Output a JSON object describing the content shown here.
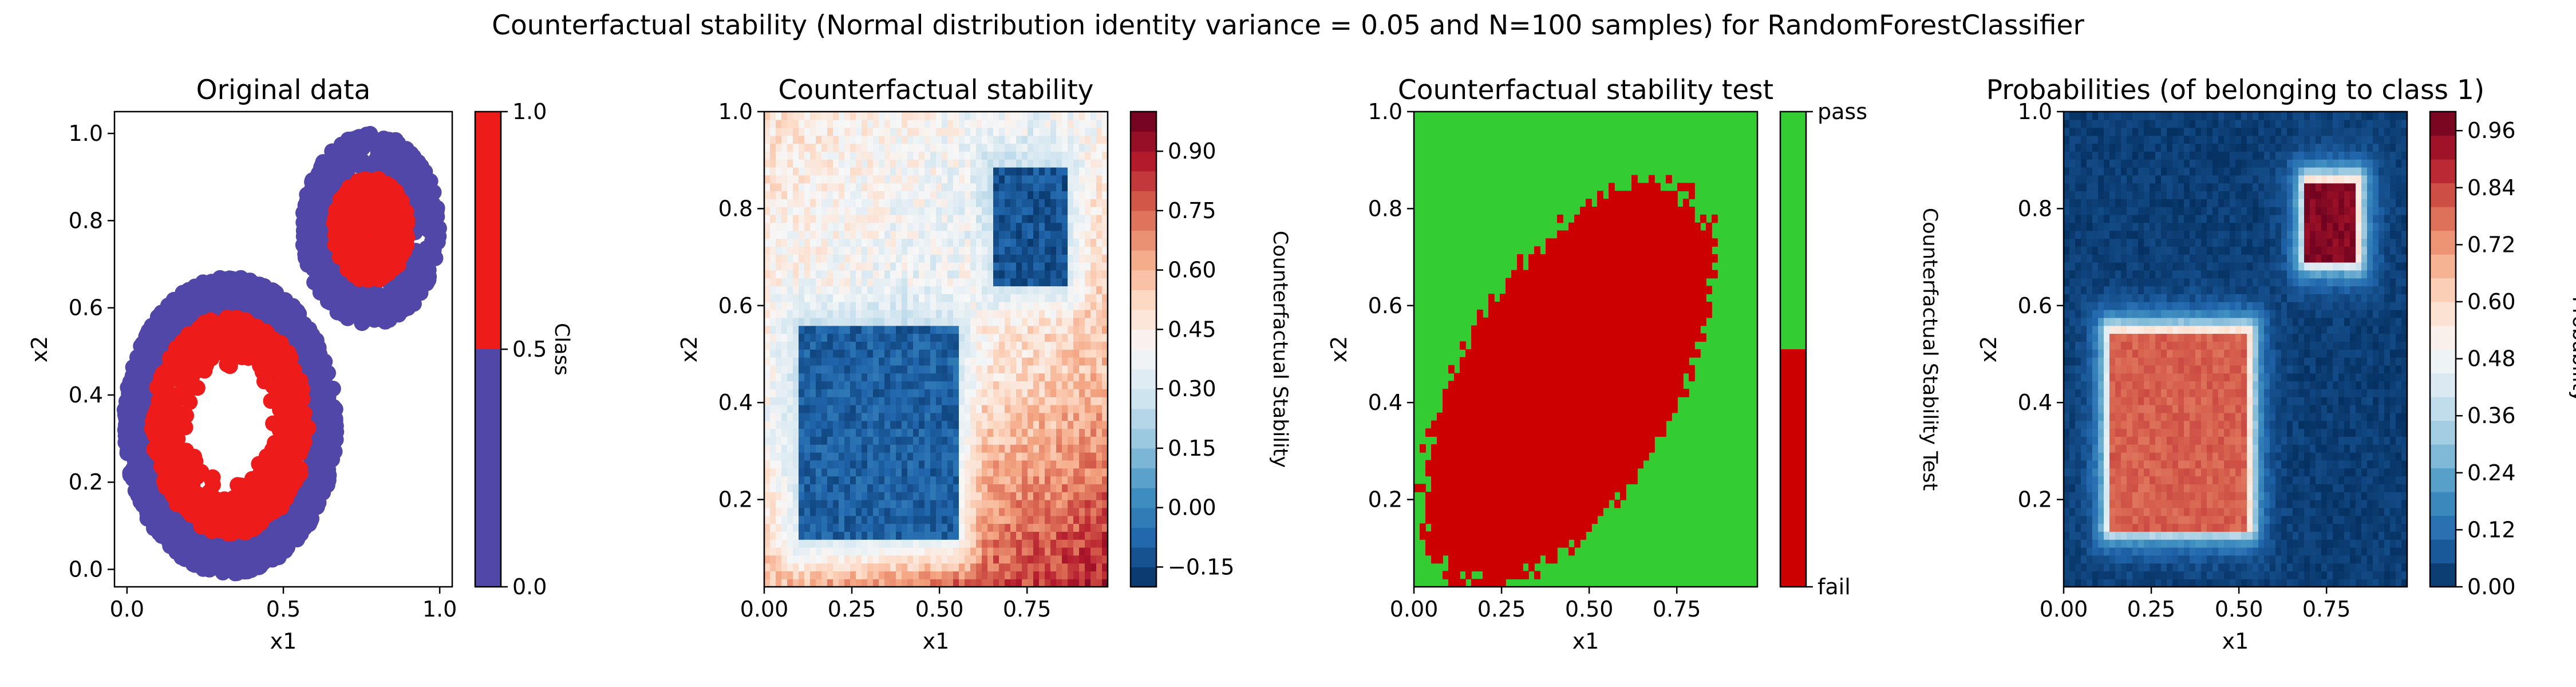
{
  "figure": {
    "suptitle": "Counterfactual stability (Normal distribution identity variance = 0.05 and N=100 samples) for RandomForestClassifier"
  },
  "colors": {
    "class0": "#5047a8",
    "class1": "#ee1b1b",
    "pass": "#33cc33",
    "fail": "#cc0000",
    "background": "#ffffff"
  },
  "chart_data": [
    {
      "type": "scatter",
      "title": "Original data",
      "xlabel": "x1",
      "ylabel": "x2",
      "xlim": [
        -0.04,
        1.04
      ],
      "ylim": [
        -0.04,
        1.05
      ],
      "xticks": [
        "0.0",
        "0.5",
        "1.0"
      ],
      "xtick_values": [
        0.0,
        0.5,
        1.0
      ],
      "yticks": [
        "0.0",
        "0.2",
        "0.4",
        "0.6",
        "0.8",
        "1.0"
      ],
      "ytick_values": [
        0.0,
        0.2,
        0.4,
        0.6,
        0.8,
        1.0
      ],
      "series": [
        {
          "class": 0,
          "rings": [
            {
              "cx": 0.33,
              "cy": 0.33,
              "r_inner": 0.22,
              "r_outer": 0.34
            },
            {
              "cx": 0.78,
              "cy": 0.78,
              "r_inner": 0.11,
              "r_outer": 0.22
            }
          ]
        },
        {
          "class": 1,
          "rings": [
            {
              "cx": 0.33,
              "cy": 0.33,
              "r_inner": 0.12,
              "r_outer": 0.25
            },
            {
              "cx": 0.78,
              "cy": 0.78,
              "r_inner": 0.02,
              "r_outer": 0.12
            }
          ]
        }
      ],
      "colorbar": {
        "label": "Class",
        "ticks": [
          "0.0",
          "0.5",
          "1.0"
        ],
        "tick_values": [
          0.0,
          0.5,
          1.0
        ],
        "range": [
          0.0,
          1.0
        ],
        "colors": [
          "#5047a8",
          "#ee1b1b"
        ]
      }
    },
    {
      "type": "heatmap",
      "title": "Counterfactual stability",
      "xlabel": "x1",
      "ylabel": "x2",
      "xlim": [
        0.0,
        0.98
      ],
      "ylim": [
        0.02,
        1.0
      ],
      "xticks": [
        "0.00",
        "0.25",
        "0.50",
        "0.75"
      ],
      "xtick_values": [
        0.0,
        0.25,
        0.5,
        0.75
      ],
      "yticks": [
        "0.2",
        "0.4",
        "0.6",
        "0.8",
        "1.0"
      ],
      "ytick_values": [
        0.2,
        0.4,
        0.6,
        0.8,
        1.0
      ],
      "colormap": "RdBu_r",
      "low_regions": [
        {
          "x0": 0.1,
          "x1": 0.55,
          "y0": 0.11,
          "y1": 0.56,
          "value": -0.15
        },
        {
          "x0": 0.66,
          "x1": 0.86,
          "y0": 0.64,
          "y1": 0.88,
          "value": -0.18
        }
      ],
      "colorbar": {
        "label": "Counterfactual Stability",
        "ticks": [
          "−0.15",
          "0.00",
          "0.15",
          "0.30",
          "0.45",
          "0.60",
          "0.75",
          "0.90"
        ],
        "tick_values": [
          -0.15,
          0.0,
          0.15,
          0.3,
          0.45,
          0.6,
          0.75,
          0.9
        ],
        "range": [
          -0.2,
          1.0
        ]
      }
    },
    {
      "type": "heatmap",
      "title": "Counterfactual stability test",
      "xlabel": "x1",
      "ylabel": "x2",
      "xlim": [
        0.0,
        0.98
      ],
      "ylim": [
        0.02,
        1.0
      ],
      "xticks": [
        "0.00",
        "0.25",
        "0.50",
        "0.75"
      ],
      "xtick_values": [
        0.0,
        0.25,
        0.5,
        0.75
      ],
      "yticks": [
        "0.2",
        "0.4",
        "0.6",
        "0.8",
        "1.0"
      ],
      "ytick_values": [
        0.2,
        0.4,
        0.6,
        0.8,
        1.0
      ],
      "classes": [
        "fail",
        "pass"
      ],
      "colorbar": {
        "label": "Counterfactual Stability Test",
        "ticks": [
          "fail",
          "pass"
        ],
        "colors": [
          "#cc0000",
          "#33cc33"
        ]
      }
    },
    {
      "type": "heatmap",
      "title": "Probabilities (of belonging to class 1)",
      "xlabel": "x1",
      "ylabel": "x2",
      "xlim": [
        0.0,
        0.98
      ],
      "ylim": [
        0.02,
        1.0
      ],
      "xticks": [
        "0.00",
        "0.25",
        "0.50",
        "0.75"
      ],
      "xtick_values": [
        0.0,
        0.25,
        0.5,
        0.75
      ],
      "yticks": [
        "0.2",
        "0.4",
        "0.6",
        "0.8",
        "1.0"
      ],
      "ytick_values": [
        0.2,
        0.4,
        0.6,
        0.8,
        1.0
      ],
      "colormap": "RdBu_r",
      "high_regions": [
        {
          "x0": 0.13,
          "x1": 0.53,
          "y0": 0.14,
          "y1": 0.55,
          "value": 0.83
        },
        {
          "x0": 0.69,
          "x1": 0.84,
          "y0": 0.69,
          "y1": 0.86,
          "value": 0.99
        }
      ],
      "colorbar": {
        "label": "Probability",
        "ticks": [
          "0.00",
          "0.12",
          "0.24",
          "0.36",
          "0.48",
          "0.60",
          "0.72",
          "0.84",
          "0.96"
        ],
        "tick_values": [
          0.0,
          0.12,
          0.24,
          0.36,
          0.48,
          0.6,
          0.72,
          0.84,
          0.96
        ],
        "range": [
          0.0,
          1.0
        ]
      }
    }
  ]
}
